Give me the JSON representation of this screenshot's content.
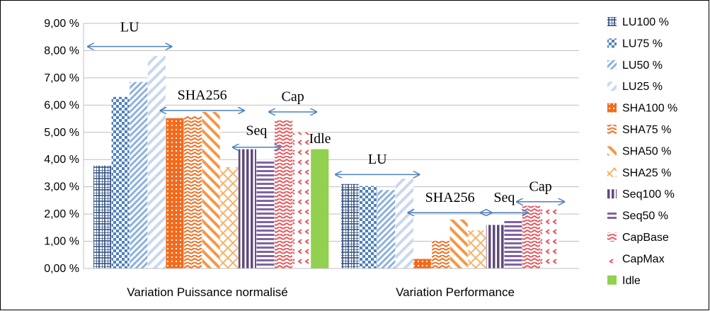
{
  "chart_data": {
    "type": "bar",
    "categories": [
      "Variation Puissance normalisé",
      "Variation Performance"
    ],
    "ylim": [
      0,
      9
    ],
    "yticks": [
      "0,00 %",
      "1,00 %",
      "2,00 %",
      "3,00 %",
      "4,00 %",
      "5,00 %",
      "6,00 %",
      "7,00 %",
      "8,00 %",
      "9,00 %"
    ],
    "grid": true,
    "legend_position": "right",
    "series": [
      {
        "name": "LU100 %",
        "values": [
          3.78,
          3.1
        ],
        "color": "#2e4c7e",
        "pattern": "grid"
      },
      {
        "name": "LU75 %",
        "values": [
          6.3,
          3.03
        ],
        "color": "#4f81bd",
        "pattern": "checker"
      },
      {
        "name": "LU50 %",
        "values": [
          6.85,
          2.88
        ],
        "color": "#8fb0dc",
        "pattern": "diag-dense"
      },
      {
        "name": "LU25 %",
        "values": [
          7.8,
          3.3
        ],
        "color": "#b8cdea",
        "pattern": "diag-light"
      },
      {
        "name": "SHA100 %",
        "values": [
          5.52,
          0.35
        ],
        "color": "#f26b1d",
        "pattern": "dots"
      },
      {
        "name": "SHA75 %",
        "values": [
          5.6,
          1.05
        ],
        "color": "#f26b1d",
        "pattern": "zigzag"
      },
      {
        "name": "SHA50 %",
        "values": [
          5.75,
          1.8
        ],
        "color": "#f79646",
        "pattern": "diag-wide"
      },
      {
        "name": "SHA25 %",
        "values": [
          3.72,
          1.4
        ],
        "color": "#fac090",
        "pattern": "diamond"
      },
      {
        "name": "Seq100 %",
        "values": [
          4.38,
          1.6
        ],
        "color": "#604a7b",
        "pattern": "vstripes"
      },
      {
        "name": "Seq50 %",
        "values": [
          4.0,
          1.78
        ],
        "color": "#8064a2",
        "pattern": "hstripes"
      },
      {
        "name": "CapBase",
        "values": [
          5.45,
          2.3
        ],
        "color": "#e8545a",
        "pattern": "zigzag-red"
      },
      {
        "name": "CapMax",
        "values": [
          5.0,
          2.35
        ],
        "color": "#e8545a",
        "pattern": "sparse-red"
      },
      {
        "name": "Idle",
        "values": [
          4.38,
          null
        ],
        "color": "#92d050",
        "pattern": "solid"
      }
    ],
    "annotations": [
      {
        "label": "LU",
        "category": 0,
        "from_series": 0,
        "to_series": 3,
        "y_value": 8.15,
        "label_y": 8.7
      },
      {
        "label": "SHA256",
        "category": 0,
        "from_series": 4,
        "to_series": 7,
        "y_value": 5.8,
        "label_y": 6.2
      },
      {
        "label": "Seq",
        "category": 0,
        "from_series": 8,
        "to_series": 9,
        "y_value": 4.45,
        "label_y": 4.9
      },
      {
        "label": "Cap",
        "category": 0,
        "from_series": 10,
        "to_series": 11,
        "y_value": 5.75,
        "label_y": 6.15
      },
      {
        "label": "Idle",
        "category": 0,
        "from_series": 12,
        "to_series": 12,
        "y_value": null,
        "label_y": 4.6
      },
      {
        "label": "LU",
        "category": 1,
        "from_series": 0,
        "to_series": 3,
        "y_value": 3.45,
        "label_y": 3.85
      },
      {
        "label": "SHA256",
        "category": 1,
        "from_series": 4,
        "to_series": 7,
        "y_value": 2.05,
        "label_y": 2.45
      },
      {
        "label": "Seq",
        "category": 1,
        "from_series": 8,
        "to_series": 9,
        "y_value": 2.05,
        "label_y": 2.45
      },
      {
        "label": "Cap",
        "category": 1,
        "from_series": 10,
        "to_series": 11,
        "y_value": 2.45,
        "label_y": 2.85
      }
    ]
  }
}
